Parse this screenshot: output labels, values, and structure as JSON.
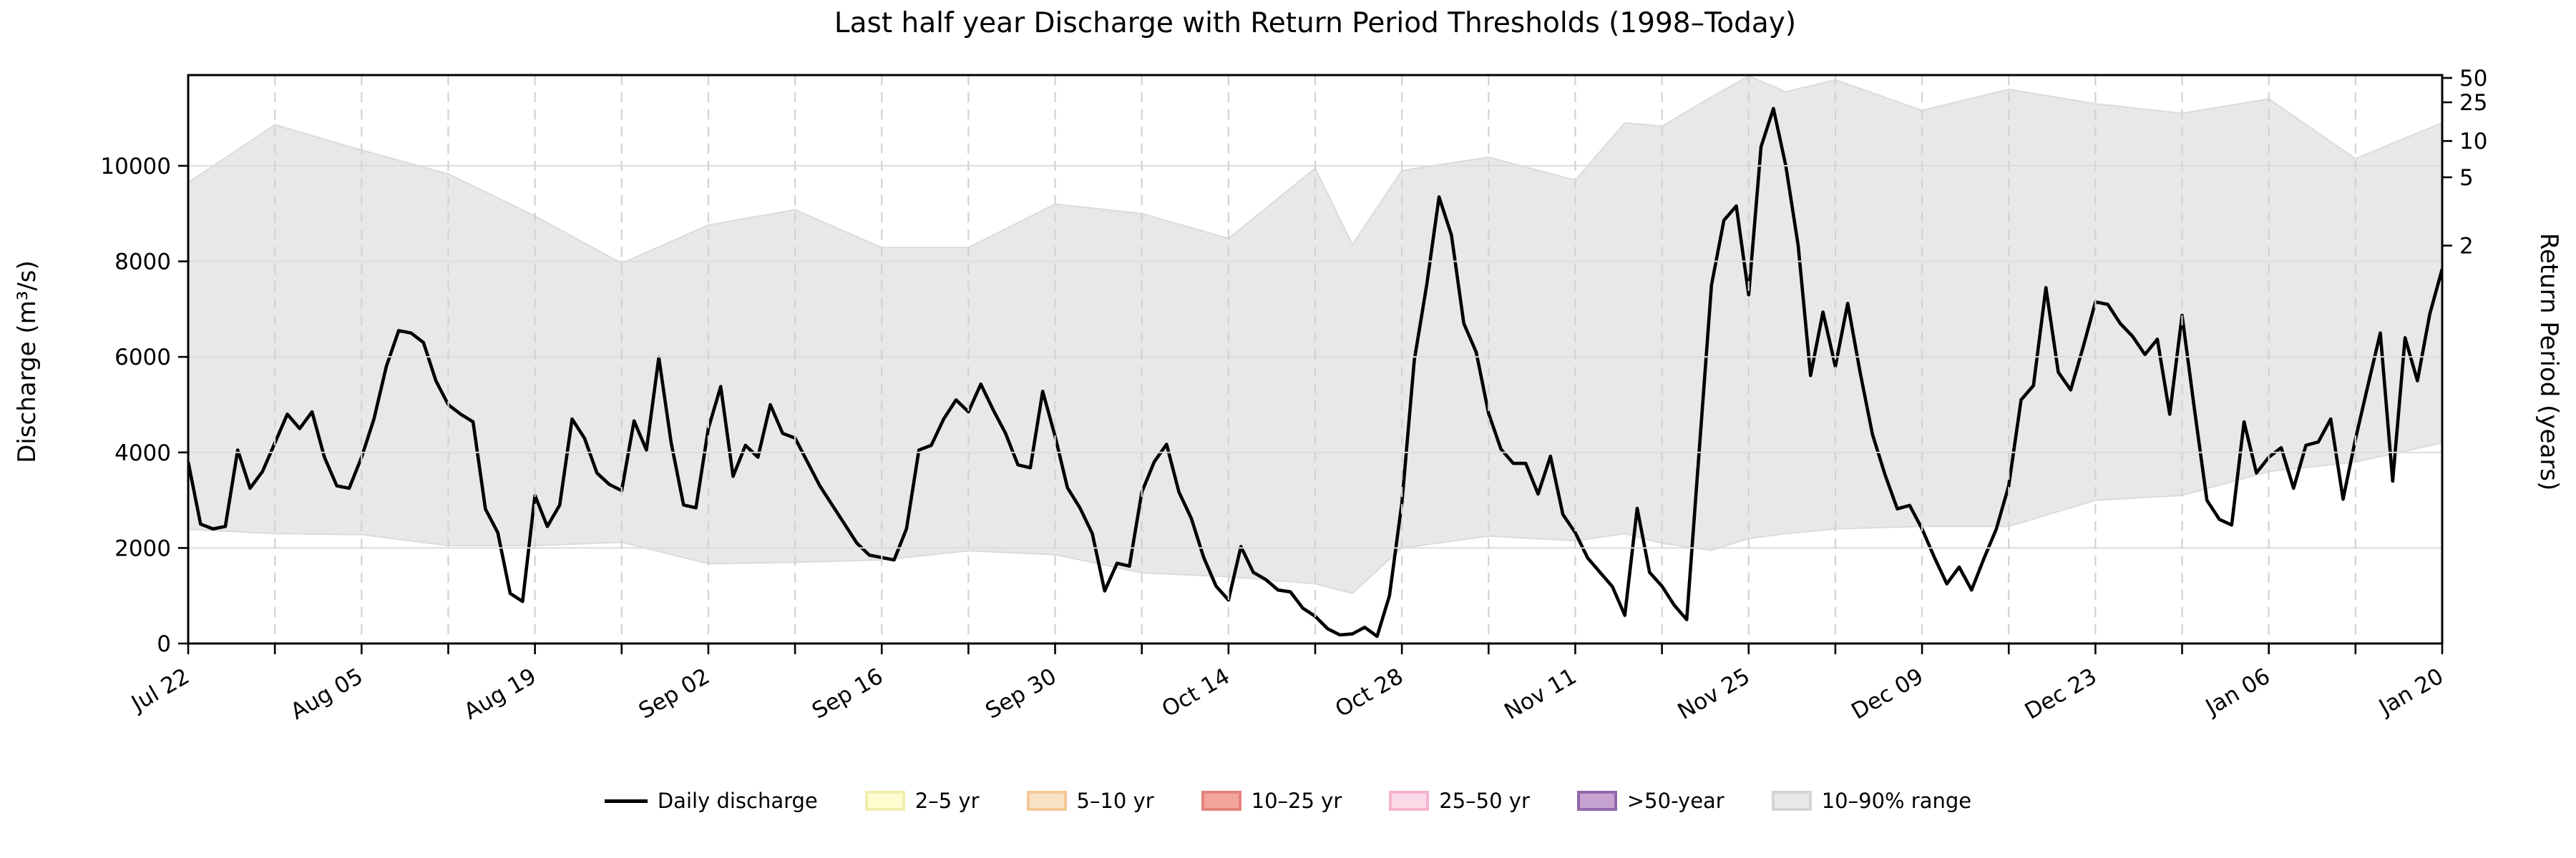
{
  "title": "Last half year Discharge with Return Period Thresholds (1998–Today)",
  "axes": {
    "left_label": "Discharge (m³/s)",
    "right_label": "Return Period (years)"
  },
  "legend": {
    "items": [
      {
        "label": "Daily discharge",
        "type": "line",
        "fill": "#000000",
        "border": "#000000"
      },
      {
        "label": "2–5 yr",
        "type": "patch",
        "fill": "#fdfdd0",
        "border": "#f2edae"
      },
      {
        "label": "5–10 yr",
        "type": "patch",
        "fill": "#fbe3c5",
        "border": "#f6c796"
      },
      {
        "label": "10–25 yr",
        "type": "patch",
        "fill": "#f2a59c",
        "border": "#e3837b"
      },
      {
        "label": "25–50 yr",
        "type": "patch",
        "fill": "#fbd9e6",
        "border": "#f5b3cf"
      },
      {
        "label": ">50-year",
        "type": "patch",
        "fill": "#c6a3d2",
        "border": "#9467ab"
      },
      {
        "label": "10–90% range",
        "type": "patch",
        "fill": "#e8e8e8",
        "border": "#d4d4d4"
      }
    ]
  },
  "chart_data": {
    "type": "line",
    "title": "Last half year Discharge with Return Period Thresholds (1998–Today)",
    "xlabel": "",
    "ylabel": "Discharge (m³/s)",
    "ylabel_right": "Return Period (years)",
    "ylim": [
      0,
      11900
    ],
    "x_start_date": "Jul 22",
    "x_end_date": "Jan 20",
    "x_days_total": 182,
    "x_tick_interval_days": 14,
    "x_minor_tick_interval_days": 7,
    "x_tick_labels": [
      "Jul 22",
      "Aug 05",
      "Aug 19",
      "Sep 02",
      "Sep 16",
      "Sep 30",
      "Oct 14",
      "Oct 28",
      "Nov 11",
      "Nov 25",
      "Dec 09",
      "Dec 23",
      "Jan 06",
      "Jan 20"
    ],
    "y_ticks": [
      0,
      2000,
      4000,
      6000,
      8000,
      10000
    ],
    "right_axis_ticks": [
      {
        "label": "2",
        "discharge_value": 8330
      },
      {
        "label": "5",
        "discharge_value": 9760
      },
      {
        "label": "10",
        "discharge_value": 10520
      },
      {
        "label": "25",
        "discharge_value": 11330
      },
      {
        "label": "50",
        "discharge_value": 11840
      }
    ],
    "series": [
      {
        "name": "Daily discharge",
        "color": "#000000",
        "unit": "m3/s",
        "start": "Jul 22",
        "cadence": "daily",
        "values": [
          3800,
          2500,
          2400,
          2450,
          4050,
          3250,
          3600,
          4200,
          4800,
          4500,
          4850,
          3900,
          3300,
          3250,
          3900,
          4700,
          5800,
          6550,
          6500,
          6300,
          5500,
          5000,
          4800,
          4640,
          2815,
          2320,
          1050,
          880,
          3100,
          2450,
          2900,
          4700,
          4300,
          3570,
          3330,
          3200,
          4660,
          4050,
          5990,
          4200,
          2900,
          2840,
          4500,
          5380,
          3500,
          4150,
          3900,
          5000,
          4400,
          4300,
          3800,
          3300,
          2900,
          2500,
          2100,
          1850,
          1800,
          1750,
          2400,
          4050,
          4150,
          4700,
          5100,
          4850,
          5430,
          4890,
          4400,
          3740,
          3680,
          5280,
          4340,
          3260,
          2840,
          2300,
          1100,
          1680,
          1620,
          3170,
          3800,
          4170,
          3170,
          2620,
          1800,
          1200,
          910,
          2030,
          1490,
          1340,
          1120,
          1080,
          740,
          570,
          310,
          180,
          200,
          340,
          150,
          1000,
          2950,
          5930,
          7500,
          9350,
          8550,
          6700,
          6100,
          4820,
          4070,
          3770,
          3770,
          3130,
          3920,
          2700,
          2320,
          1790,
          1490,
          1190,
          590,
          2830,
          1490,
          1200,
          800,
          500,
          4000,
          7500,
          8860,
          9160,
          7300,
          10400,
          11200,
          10000,
          8330,
          5610,
          6940,
          5800,
          7120,
          5680,
          4380,
          3540,
          2820,
          2890,
          2400,
          1800,
          1250,
          1600,
          1120,
          1780,
          2400,
          3300,
          5100,
          5400,
          7450,
          5680,
          5310,
          6200,
          7150,
          7100,
          6700,
          6430,
          6050,
          6370,
          4800,
          6870,
          4900,
          3000,
          2600,
          2480,
          4640,
          3570,
          3900,
          4100,
          3250,
          4150,
          4220,
          4700,
          3020,
          4280,
          5400,
          6500,
          3400,
          6400,
          5500,
          6900,
          7840
        ]
      }
    ],
    "band": {
      "name": "10–90% range",
      "fill": "#e8e8e8",
      "anchors_day_lo_hi": [
        [
          0,
          2390,
          9650
        ],
        [
          7,
          2300,
          10860
        ],
        [
          14,
          2280,
          10330
        ],
        [
          21,
          2050,
          9830
        ],
        [
          28,
          2050,
          8950
        ],
        [
          35,
          2120,
          7960
        ],
        [
          42,
          1670,
          8760
        ],
        [
          49,
          1700,
          9080
        ],
        [
          56,
          1750,
          8290
        ],
        [
          63,
          1940,
          8290
        ],
        [
          70,
          1860,
          9200
        ],
        [
          77,
          1480,
          9000
        ],
        [
          84,
          1400,
          8480
        ],
        [
          91,
          1250,
          9950
        ],
        [
          94,
          1050,
          8350
        ],
        [
          98,
          2000,
          9900
        ],
        [
          105,
          2250,
          10180
        ],
        [
          112,
          2150,
          9700
        ],
        [
          116,
          2300,
          10900
        ],
        [
          119,
          2100,
          10830
        ],
        [
          123,
          1950,
          11440
        ],
        [
          126,
          2200,
          11880
        ],
        [
          129,
          2300,
          11550
        ],
        [
          133,
          2400,
          11800
        ],
        [
          140,
          2450,
          11160
        ],
        [
          147,
          2450,
          11600
        ],
        [
          154,
          3000,
          11300
        ],
        [
          161,
          3100,
          11100
        ],
        [
          168,
          3600,
          11400
        ],
        [
          175,
          3800,
          10150
        ],
        [
          182,
          4200,
          10900
        ]
      ]
    },
    "return_period_thresholds_m3s": {
      "2yr": 8330,
      "5yr": 9760,
      "10yr": 10520,
      "25yr": 11330,
      "50yr": 11840
    },
    "grid": {
      "horizontal": "solid",
      "vertical": "dashed-weekly"
    },
    "legend_position": "bottom-center"
  },
  "layout_note_values_visible_only": true
}
